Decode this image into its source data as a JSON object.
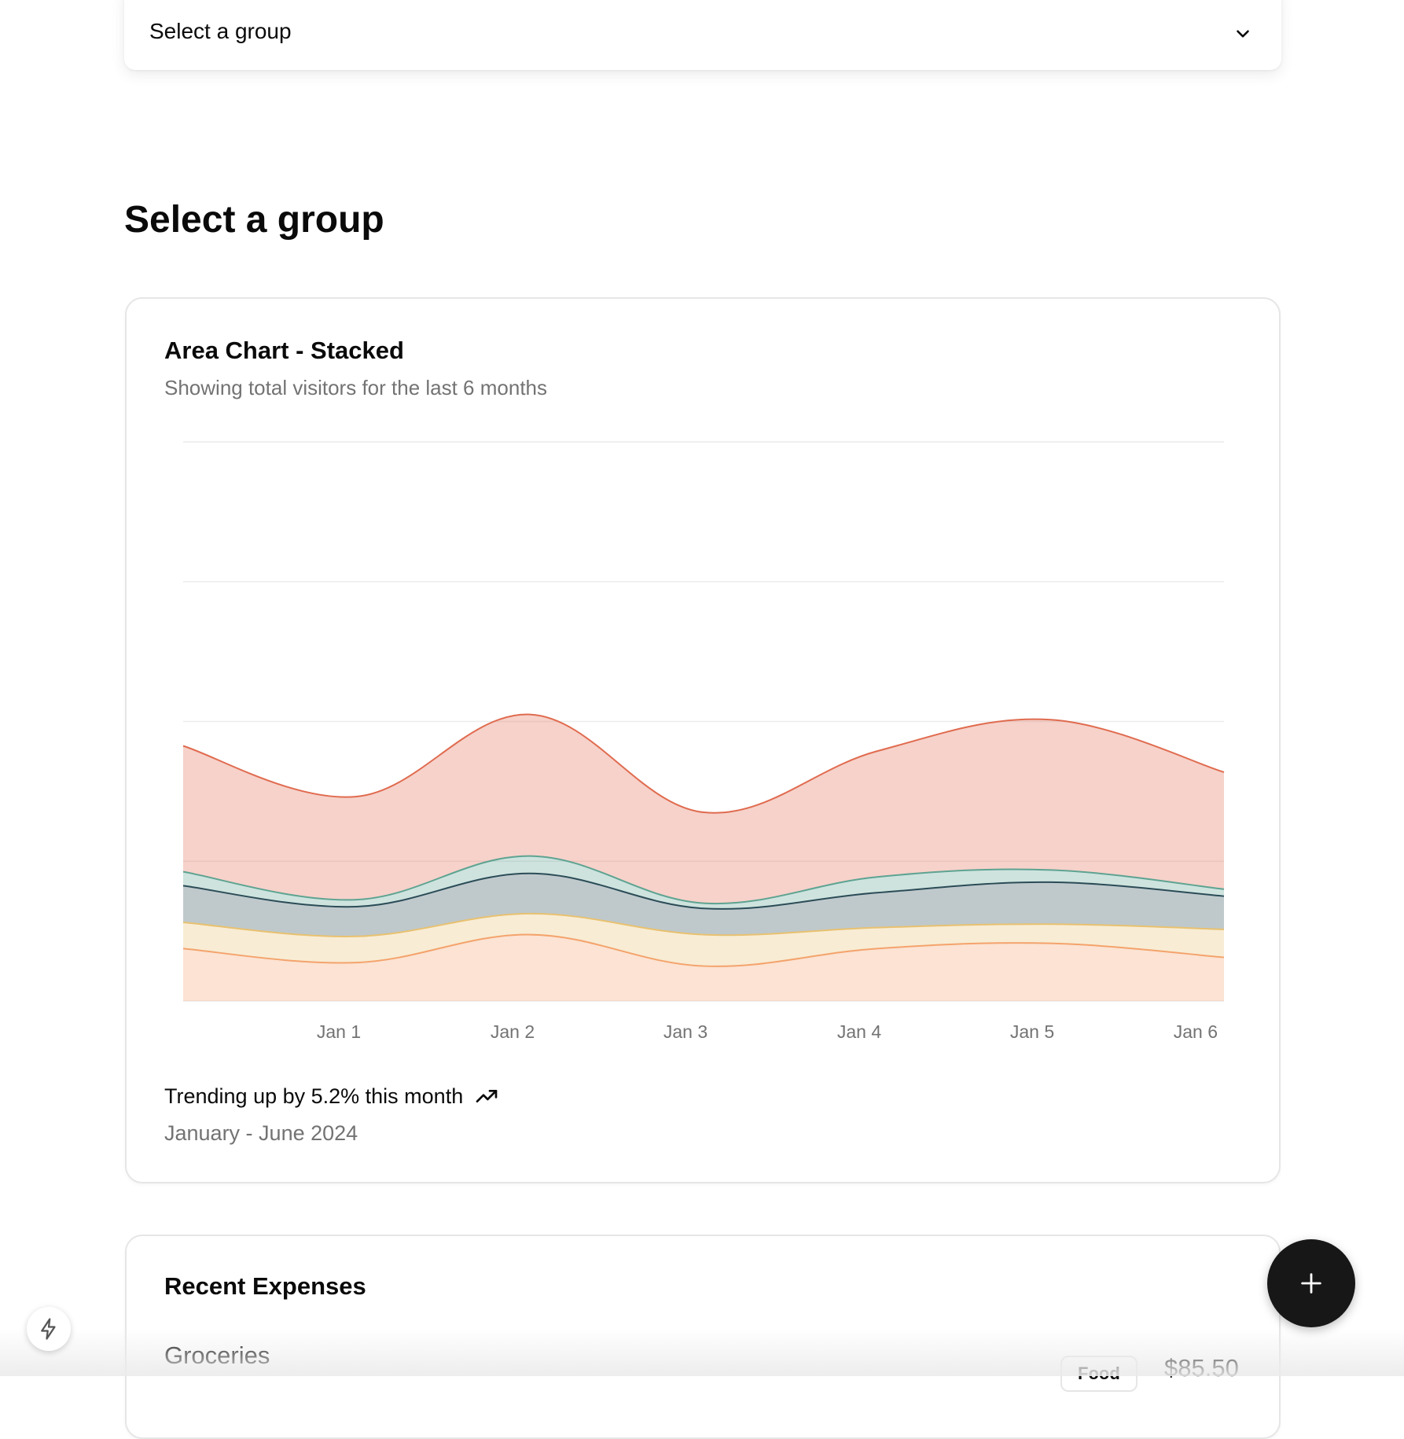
{
  "group_select": {
    "value": "Select a group",
    "icon": "chevron-down-icon"
  },
  "page_title": "Select a group",
  "chart_card": {
    "title": "Area Chart - Stacked",
    "description": "Showing total visitors for the last 6 months",
    "footer_trend": "Trending up by 5.2% this month",
    "footer_trend_icon": "trending-up-icon",
    "footer_period": "January - June 2024"
  },
  "chart_data": {
    "type": "area",
    "stacked": true,
    "categories": [
      "",
      "Jan 1",
      "Jan 2",
      "Jan 3",
      "Jan 4",
      "Jan 5",
      "Jan 6"
    ],
    "series": [
      {
        "color": "#f4a36c",
        "values": [
          30,
          22,
          38,
          20,
          30,
          33,
          25
        ]
      },
      {
        "color": "#e8c170",
        "values": [
          15,
          15,
          12,
          18,
          12,
          11,
          16
        ]
      },
      {
        "color": "#2b4c57",
        "values": [
          21,
          17,
          23,
          15,
          20,
          24,
          19
        ]
      },
      {
        "color": "#5ea392",
        "values": [
          8,
          4,
          10,
          3,
          9,
          7,
          4
        ]
      },
      {
        "color": "#e06b4f",
        "values": [
          72,
          59,
          81,
          52,
          72,
          86,
          67
        ]
      }
    ],
    "ylim": [
      0,
      320
    ],
    "grid": true
  },
  "expenses_card": {
    "title": "Recent Expenses",
    "items": [
      {
        "name": "Groceries",
        "category": "Food",
        "amount": "$85.50"
      }
    ]
  },
  "fab": {
    "icon": "plus-icon"
  },
  "corner_button": {
    "icon": "bolt-icon"
  }
}
